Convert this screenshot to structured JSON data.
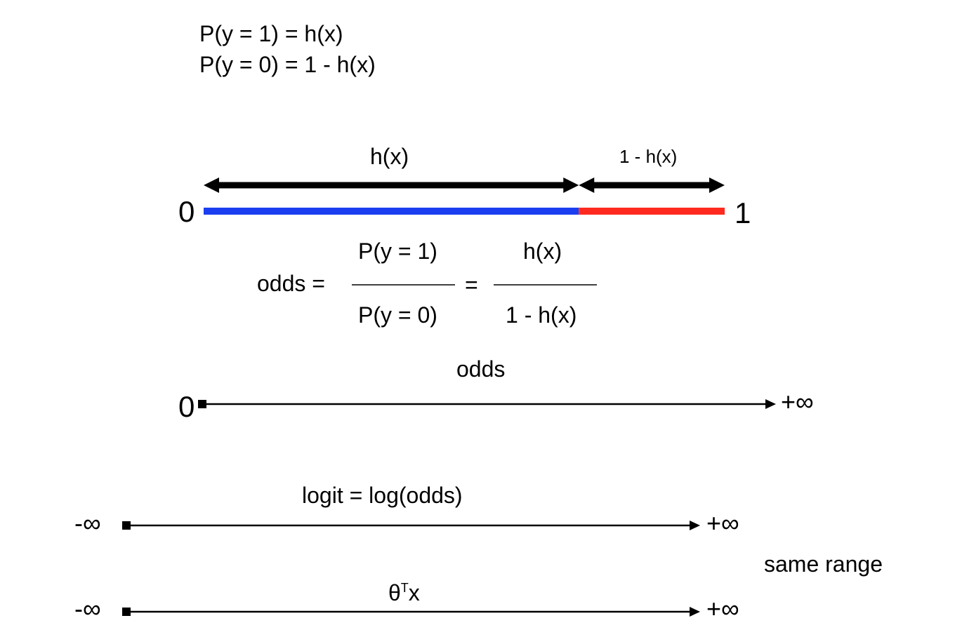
{
  "header": {
    "line1": "P(y = 1) = h(x)",
    "line2": "P(y = 0) = 1 - h(x)"
  },
  "prob_bar": {
    "left_arrow_label": "h(x)",
    "right_arrow_label": "1 - h(x)",
    "left_end": "0",
    "right_end": "1",
    "split_fraction": 0.72,
    "colors": {
      "h_segment": "#1a3ef0",
      "one_minus_h_segment": "#ff2a1f",
      "arrows": "#000000"
    }
  },
  "odds_formula": {
    "lhs": "odds =",
    "num1": "P(y = 1)",
    "den1": "P(y = 0)",
    "equals": "=",
    "num2": "h(x)",
    "den2": "1 - h(x)"
  },
  "odds_line": {
    "label": "odds",
    "left": "0",
    "right": "+∞"
  },
  "logit_line": {
    "label": "logit = log(odds)",
    "left": "-∞",
    "right": "+∞"
  },
  "range_note": "same range",
  "theta_line": {
    "label_base": "θ",
    "label_sup": "T",
    "label_var": "x",
    "left": "-∞",
    "right": "+∞"
  }
}
